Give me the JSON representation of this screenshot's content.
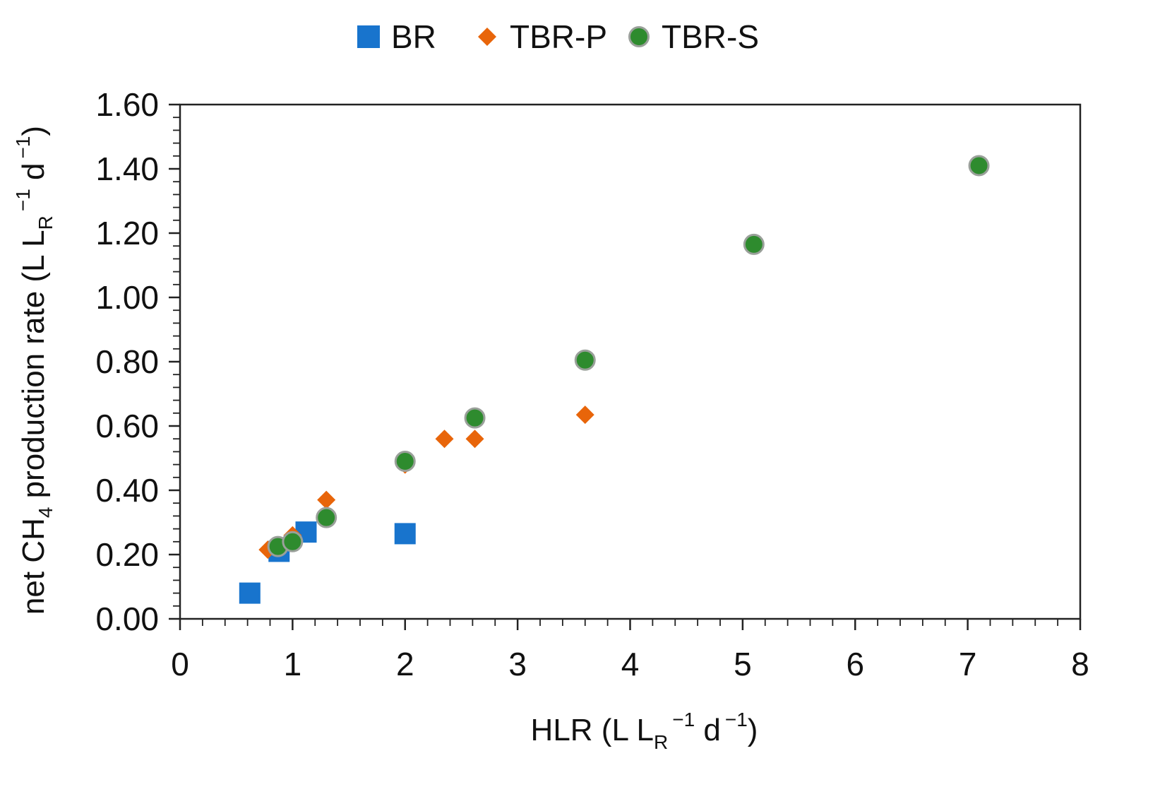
{
  "chart_data": {
    "type": "scatter",
    "xlabel": {
      "prefix": "HLR (L L",
      "sub": "R",
      "sup1": "−1",
      "mid": " d",
      "sup2": "−1",
      "suffix": ")"
    },
    "ylabel": {
      "prefix": "net CH",
      "sub1": "4",
      "mid": "  production rate (L L",
      "sub2": "R",
      "sup1": "−1",
      "mid2": " d",
      "sup2": "−1",
      "suffix": ")"
    },
    "xlim": [
      0,
      8
    ],
    "ylim": [
      0,
      1.6
    ],
    "x_ticks": [
      0,
      1,
      2,
      3,
      4,
      5,
      6,
      7,
      8
    ],
    "y_ticks": [
      "0.00",
      "0.20",
      "0.40",
      "0.60",
      "0.80",
      "1.00",
      "1.20",
      "1.40",
      "1.60"
    ],
    "grid": false,
    "legend_position": "top-center",
    "series": [
      {
        "name": "BR",
        "marker": "square",
        "color": "#1874cd",
        "x": [
          0.62,
          0.88,
          1.12,
          2.0
        ],
        "y": [
          0.08,
          0.21,
          0.27,
          0.265
        ]
      },
      {
        "name": "TBR-P",
        "marker": "diamond",
        "color": "#e8650a",
        "x": [
          0.78,
          1.0,
          1.3,
          2.0,
          2.35,
          2.62,
          3.6
        ],
        "y": [
          0.215,
          0.26,
          0.37,
          0.48,
          0.56,
          0.56,
          0.635
        ]
      },
      {
        "name": "TBR-S",
        "marker": "circle",
        "color": "#2e8b2e",
        "x": [
          0.87,
          1.0,
          1.3,
          2.0,
          2.62,
          3.6,
          5.1,
          7.1
        ],
        "y": [
          0.225,
          0.24,
          0.315,
          0.49,
          0.625,
          0.805,
          1.165,
          1.41
        ]
      }
    ]
  }
}
